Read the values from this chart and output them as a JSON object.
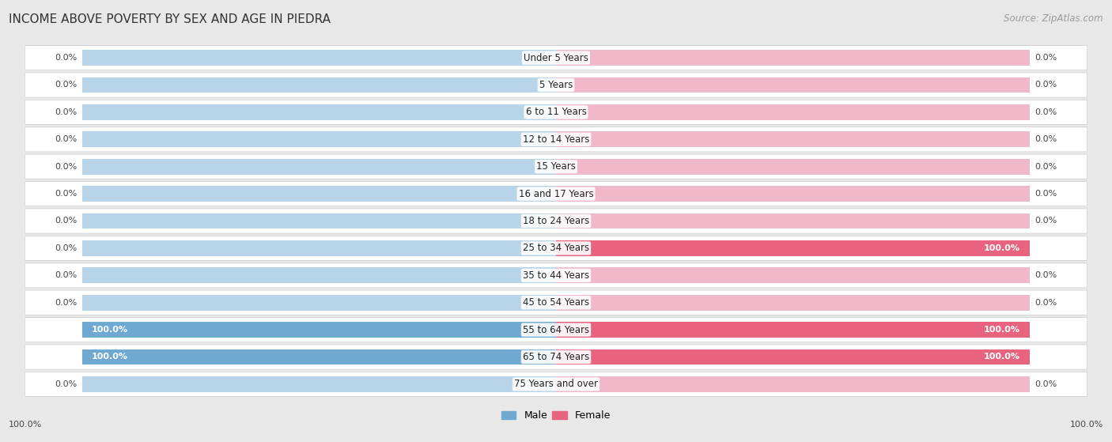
{
  "title": "INCOME ABOVE POVERTY BY SEX AND AGE IN PIEDRA",
  "source": "Source: ZipAtlas.com",
  "categories": [
    "Under 5 Years",
    "5 Years",
    "6 to 11 Years",
    "12 to 14 Years",
    "15 Years",
    "16 and 17 Years",
    "18 to 24 Years",
    "25 to 34 Years",
    "35 to 44 Years",
    "45 to 54 Years",
    "55 to 64 Years",
    "65 to 74 Years",
    "75 Years and over"
  ],
  "male_values": [
    0.0,
    0.0,
    0.0,
    0.0,
    0.0,
    0.0,
    0.0,
    0.0,
    0.0,
    0.0,
    100.0,
    100.0,
    0.0
  ],
  "female_values": [
    0.0,
    0.0,
    0.0,
    0.0,
    0.0,
    0.0,
    0.0,
    100.0,
    0.0,
    0.0,
    100.0,
    100.0,
    0.0
  ],
  "male_color_full": "#6fa8d0",
  "female_color_full": "#e8637e",
  "bar_bg_male": "#b8d4e8",
  "bar_bg_female": "#f0b8c8",
  "bg_color": "#e8e8e8",
  "row_bg_color": "#ffffff",
  "title_fontsize": 11,
  "label_fontsize": 8.5,
  "value_fontsize": 8,
  "legend_fontsize": 9,
  "source_fontsize": 8.5
}
